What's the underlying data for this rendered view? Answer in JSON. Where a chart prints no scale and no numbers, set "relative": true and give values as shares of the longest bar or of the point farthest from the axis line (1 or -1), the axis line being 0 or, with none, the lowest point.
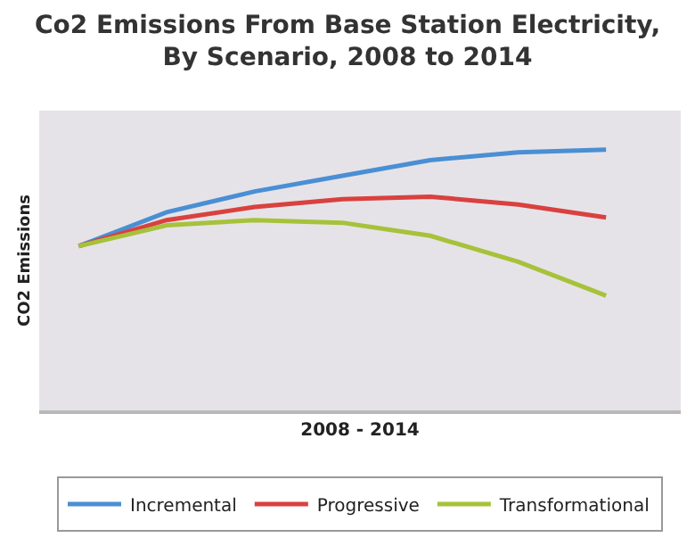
{
  "chart_data": {
    "type": "line",
    "title": "Co2 Emissions From Base Station Electricity, By Scenario, 2008 to 2014",
    "xlabel": "2008 - 2014",
    "ylabel": "CO2 Emissions",
    "relative": true,
    "categories": [
      null,
      null,
      null,
      null,
      null,
      null,
      null
    ],
    "series": [
      {
        "name": "Incremental",
        "color": "#4a8fd4",
        "values": [
          0.63,
          0.76,
          0.84,
          0.9,
          0.96,
          0.99,
          1
        ]
      },
      {
        "name": "Progressive",
        "color": "#d9413f",
        "values": [
          0.63,
          0.73,
          0.78,
          0.81,
          0.82,
          0.79,
          0.74
        ]
      },
      {
        "name": "Transformational",
        "color": "#a6c23a",
        "values": [
          0.63,
          0.71,
          0.73,
          0.72,
          0.67,
          0.57,
          0.44
        ]
      }
    ],
    "grid": false,
    "legend": "bottom",
    "marker": "none",
    "line_style": "solid"
  }
}
